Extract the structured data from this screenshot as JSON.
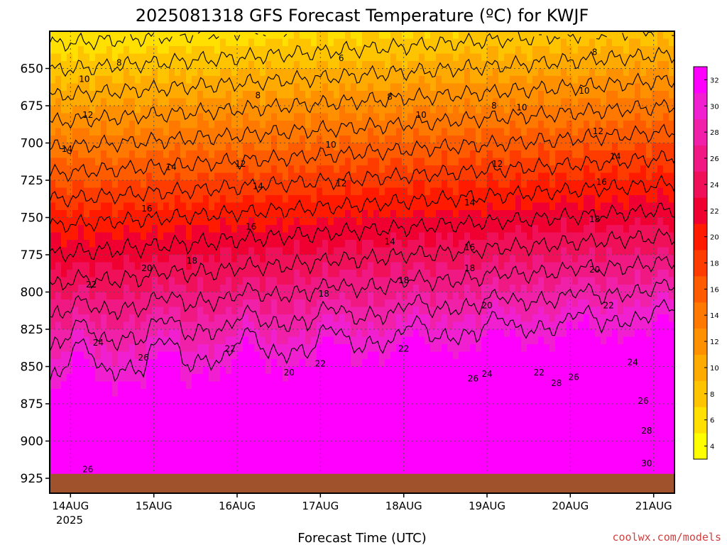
{
  "chart_data": {
    "type": "heatmap",
    "title": "2025081318 GFS Forecast Temperature (ºC) for KWJF",
    "xlabel": "Forecast Time (UTC)",
    "ylabel": "",
    "credit": "coolwx.com/models",
    "y_axis": {
      "ticks": [
        650,
        675,
        700,
        725,
        750,
        775,
        800,
        825,
        850,
        875,
        900,
        925
      ],
      "range": [
        625,
        935
      ],
      "inverted": true
    },
    "x_axis": {
      "categories": [
        "14AUG",
        "15AUG",
        "16AUG",
        "17AUG",
        "18AUG",
        "19AUG",
        "20AUG",
        "21AUG"
      ],
      "year_label": "2025",
      "range_hours_from_start": [
        0,
        180
      ]
    },
    "colorbar": {
      "labels": [
        4,
        6,
        8,
        10,
        12,
        14,
        16,
        18,
        20,
        22,
        24,
        26,
        28,
        30,
        32
      ],
      "colors": [
        "#ffff00",
        "#ffe000",
        "#ffc400",
        "#ffaa00",
        "#ff9000",
        "#ff7800",
        "#ff5c00",
        "#ff3c00",
        "#ff1a00",
        "#f00030",
        "#f0105a",
        "#f01882",
        "#f020a8",
        "#f020d0",
        "#ff00ff"
      ]
    },
    "contour_levels": [
      6,
      8,
      10,
      12,
      14,
      16,
      18,
      20,
      22,
      24,
      26,
      28,
      30
    ],
    "contour_labels": [
      {
        "text": "6",
        "t": 84,
        "p": 645
      },
      {
        "text": "8",
        "t": 20,
        "p": 648
      },
      {
        "text": "8",
        "t": 60,
        "p": 670
      },
      {
        "text": "8",
        "t": 98,
        "p": 671
      },
      {
        "text": "8",
        "t": 128,
        "p": 677
      },
      {
        "text": "8",
        "t": 157,
        "p": 641
      },
      {
        "text": "10",
        "t": 10,
        "p": 659
      },
      {
        "text": "10",
        "t": 81,
        "p": 703
      },
      {
        "text": "10",
        "t": 107,
        "p": 683
      },
      {
        "text": "10",
        "t": 136,
        "p": 678
      },
      {
        "text": "10",
        "t": 154,
        "p": 667
      },
      {
        "text": "12",
        "t": 11,
        "p": 683
      },
      {
        "text": "12",
        "t": 55,
        "p": 716
      },
      {
        "text": "12",
        "t": 84,
        "p": 729
      },
      {
        "text": "12",
        "t": 129,
        "p": 716
      },
      {
        "text": "12",
        "t": 158,
        "p": 694
      },
      {
        "text": "14",
        "t": 5,
        "p": 706
      },
      {
        "text": "14",
        "t": 35,
        "p": 718
      },
      {
        "text": "14",
        "t": 60,
        "p": 731
      },
      {
        "text": "14",
        "t": 98,
        "p": 768
      },
      {
        "text": "14",
        "t": 121,
        "p": 742
      },
      {
        "text": "14",
        "t": 163,
        "p": 711
      },
      {
        "text": "16",
        "t": 28,
        "p": 746
      },
      {
        "text": "16",
        "t": 58,
        "p": 758
      },
      {
        "text": "16",
        "t": 121,
        "p": 772
      },
      {
        "text": "16",
        "t": 159,
        "p": 728
      },
      {
        "text": "18",
        "t": 41,
        "p": 781
      },
      {
        "text": "18",
        "t": 79,
        "p": 803
      },
      {
        "text": "18",
        "t": 102,
        "p": 794
      },
      {
        "text": "18",
        "t": 121,
        "p": 786
      },
      {
        "text": "18",
        "t": 157,
        "p": 753
      },
      {
        "text": "20",
        "t": 28,
        "p": 786
      },
      {
        "text": "20",
        "t": 69,
        "p": 856
      },
      {
        "text": "20",
        "t": 126,
        "p": 811
      },
      {
        "text": "20",
        "t": 157,
        "p": 787
      },
      {
        "text": "22",
        "t": 12,
        "p": 797
      },
      {
        "text": "22",
        "t": 52,
        "p": 840
      },
      {
        "text": "22",
        "t": 78,
        "p": 850
      },
      {
        "text": "22",
        "t": 102,
        "p": 840
      },
      {
        "text": "22",
        "t": 141,
        "p": 856
      },
      {
        "text": "22",
        "t": 161,
        "p": 811
      },
      {
        "text": "24",
        "t": 14,
        "p": 836
      },
      {
        "text": "24",
        "t": 126,
        "p": 857
      },
      {
        "text": "24",
        "t": 168,
        "p": 849
      },
      {
        "text": "26",
        "t": 27,
        "p": 846
      },
      {
        "text": "26",
        "t": 11,
        "p": 921
      },
      {
        "text": "26",
        "t": 122,
        "p": 860
      },
      {
        "text": "26",
        "t": 151,
        "p": 859
      },
      {
        "text": "26",
        "t": 171,
        "p": 875
      },
      {
        "text": "28",
        "t": 146,
        "p": 863
      },
      {
        "text": "28",
        "t": 172,
        "p": 895
      },
      {
        "text": "30",
        "t": 172,
        "p": 917
      }
    ],
    "ground_level_hpa": 922
  }
}
